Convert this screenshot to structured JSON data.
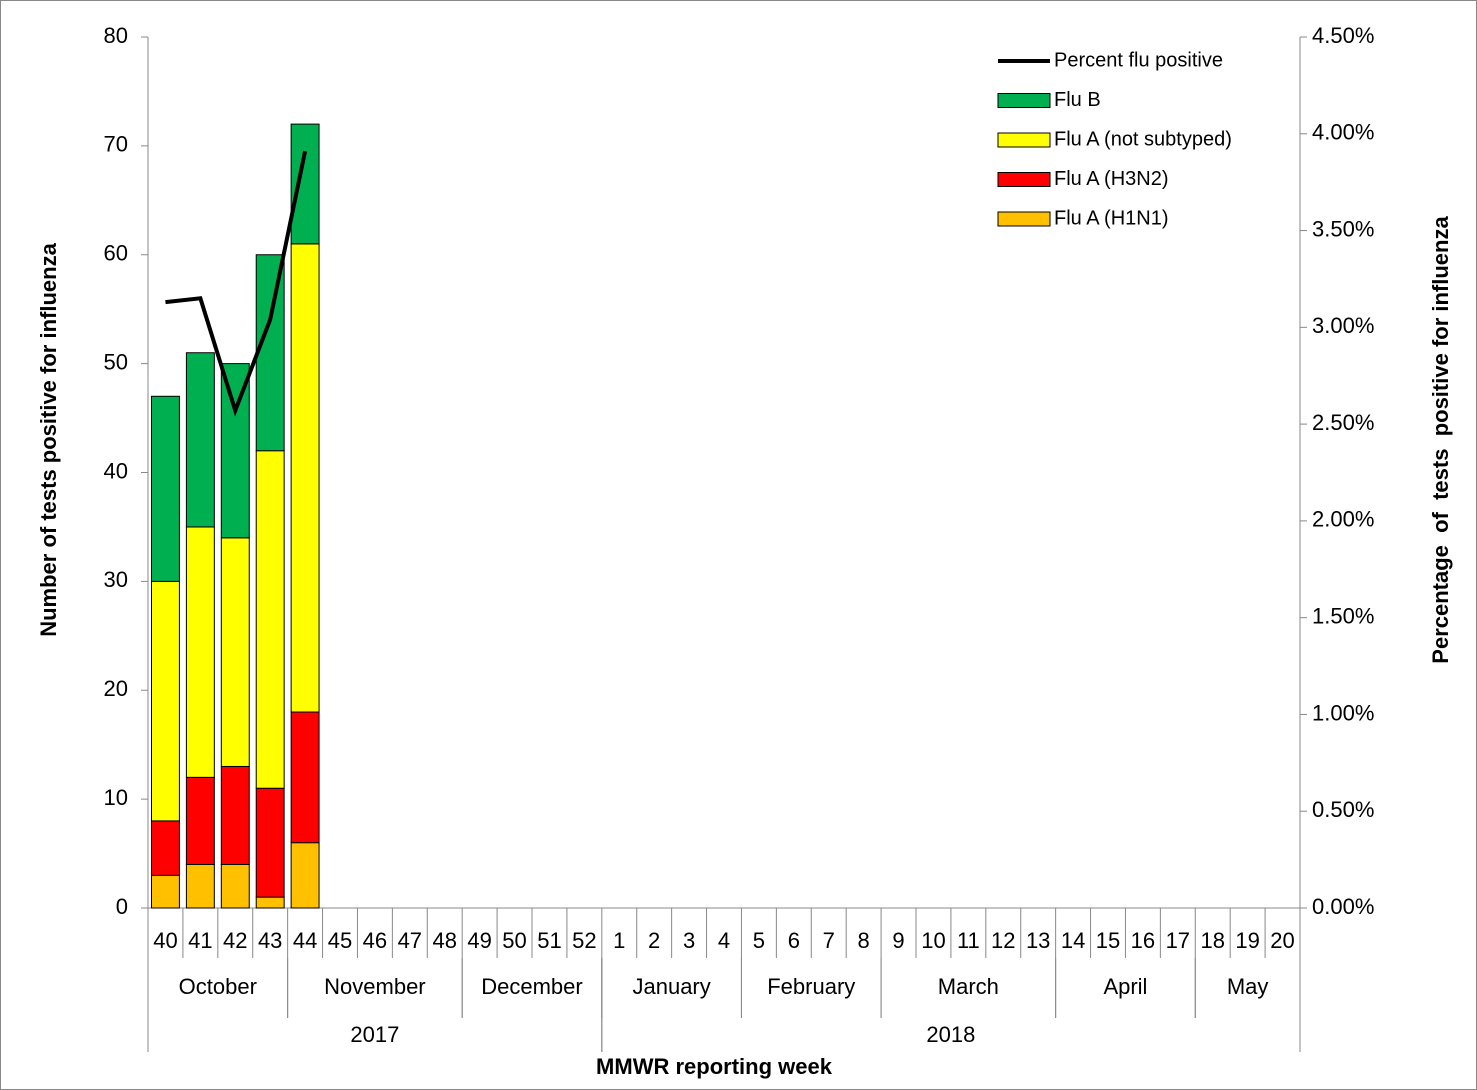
{
  "chart_data": {
    "type": "bar",
    "y_label": "Number of tests positive for influenza",
    "y2_label": "Percentage  of  tests  positive for influenza",
    "x_label": "MMWR reporting week",
    "categories": [
      "40",
      "41",
      "42",
      "43",
      "44",
      "45",
      "46",
      "47",
      "48",
      "49",
      "50",
      "51",
      "52",
      "1",
      "2",
      "3",
      "4",
      "5",
      "6",
      "7",
      "8",
      "9",
      "10",
      "11",
      "12",
      "13",
      "14",
      "15",
      "16",
      "17",
      "18",
      "19",
      "20"
    ],
    "month_groups": [
      {
        "label": "October",
        "count": 4
      },
      {
        "label": "November",
        "count": 5
      },
      {
        "label": "December",
        "count": 4
      },
      {
        "label": "January",
        "count": 4
      },
      {
        "label": "February",
        "count": 4
      },
      {
        "label": "March",
        "count": 5
      },
      {
        "label": "April",
        "count": 4
      },
      {
        "label": "May",
        "count": 3
      }
    ],
    "year_groups": [
      {
        "label": "2017",
        "count": 13
      },
      {
        "label": "2018",
        "count": 20
      }
    ],
    "series": [
      {
        "name": "Flu A (H1N1)",
        "color": "#FFC000",
        "values": [
          3,
          4,
          4,
          1,
          6,
          null,
          null,
          null,
          null,
          null,
          null,
          null,
          null,
          null,
          null,
          null,
          null,
          null,
          null,
          null,
          null,
          null,
          null,
          null,
          null,
          null,
          null,
          null,
          null,
          null,
          null,
          null,
          null
        ]
      },
      {
        "name": "Flu A (H3N2)",
        "color": "#FF0000",
        "values": [
          5,
          8,
          9,
          10,
          12,
          null,
          null,
          null,
          null,
          null,
          null,
          null,
          null,
          null,
          null,
          null,
          null,
          null,
          null,
          null,
          null,
          null,
          null,
          null,
          null,
          null,
          null,
          null,
          null,
          null,
          null,
          null,
          null
        ]
      },
      {
        "name": "Flu A (not subtyped)",
        "color": "#FFFF00",
        "values": [
          22,
          23,
          21,
          31,
          43,
          null,
          null,
          null,
          null,
          null,
          null,
          null,
          null,
          null,
          null,
          null,
          null,
          null,
          null,
          null,
          null,
          null,
          null,
          null,
          null,
          null,
          null,
          null,
          null,
          null,
          null,
          null,
          null
        ]
      },
      {
        "name": "Flu B",
        "color": "#00B050",
        "values": [
          17,
          16,
          16,
          18,
          11,
          null,
          null,
          null,
          null,
          null,
          null,
          null,
          null,
          null,
          null,
          null,
          null,
          null,
          null,
          null,
          null,
          null,
          null,
          null,
          null,
          null,
          null,
          null,
          null,
          null,
          null,
          null,
          null
        ]
      },
      {
        "name": "Percent flu positive",
        "color": "#000000",
        "type": "line",
        "axis": "y2",
        "values": [
          3.13,
          3.15,
          2.57,
          3.04,
          3.91,
          null,
          null,
          null,
          null,
          null,
          null,
          null,
          null,
          null,
          null,
          null,
          null,
          null,
          null,
          null,
          null,
          null,
          null,
          null,
          null,
          null,
          null,
          null,
          null,
          null,
          null,
          null,
          null
        ]
      }
    ],
    "stacked": true,
    "ylim": [
      0,
      80
    ],
    "yticks": [
      0,
      10,
      20,
      30,
      40,
      50,
      60,
      70,
      80
    ],
    "y2lim": [
      0,
      4.5
    ],
    "y2ticks": [
      {
        "value": 0,
        "label": "0.00%"
      },
      {
        "value": 0.5,
        "label": "0.50%"
      },
      {
        "value": 1,
        "label": "1.00%"
      },
      {
        "value": 1.5,
        "label": "1.50%"
      },
      {
        "value": 2,
        "label": "2.00%"
      },
      {
        "value": 2.5,
        "label": "2.50%"
      },
      {
        "value": 3,
        "label": "3.00%"
      },
      {
        "value": 3.5,
        "label": "3.50%"
      },
      {
        "value": 4,
        "label": "4.00%"
      },
      {
        "value": 4.5,
        "label": "4.50%"
      }
    ],
    "legend": "top-right"
  }
}
